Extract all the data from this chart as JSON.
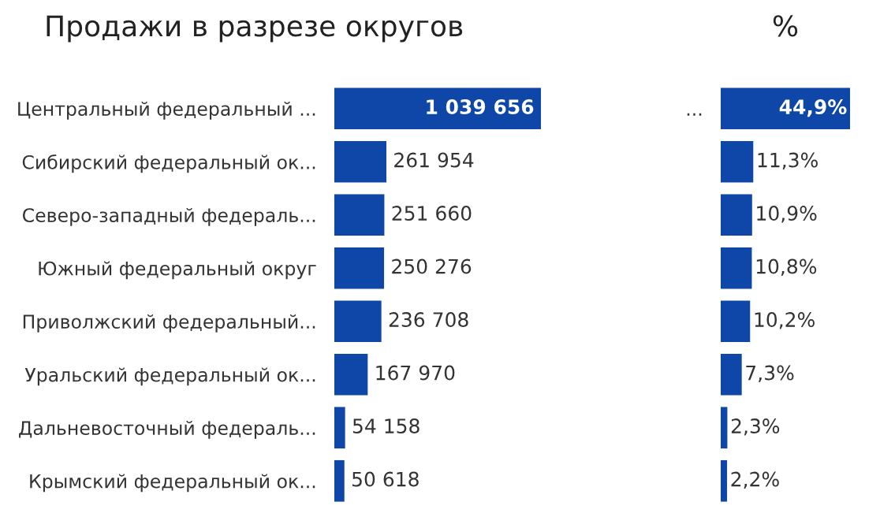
{
  "chart_data": [
    {
      "type": "bar",
      "orientation": "horizontal",
      "title": "Продажи в разрезе округов",
      "categories": [
        "Центральный федеральный ...",
        "Сибирский федеральный ок...",
        "Северо-западный федераль...",
        "Южный федеральный округ",
        "Приволжский федеральный...",
        "Уральский федеральный ок...",
        "Дальневосточный федераль...",
        "Крымский федеральный ок..."
      ],
      "values": [
        1039656,
        261954,
        251660,
        250276,
        236708,
        167970,
        54158,
        50618
      ],
      "value_labels": [
        "1 039 656",
        "261 954",
        "251 660",
        "250 276",
        "236 708",
        "167 970",
        "54 158",
        "50 618"
      ],
      "color": "#0f47a8"
    },
    {
      "type": "bar",
      "orientation": "horizontal",
      "title": "%",
      "categories": [
        "...",
        null,
        null,
        null,
        null,
        null,
        null,
        null
      ],
      "values": [
        44.9,
        11.3,
        10.9,
        10.8,
        10.2,
        7.3,
        2.3,
        2.2
      ],
      "value_labels": [
        "44,9%",
        "11,3%",
        "10,9%",
        "10,8%",
        "10,2%",
        "7,3%",
        "2,3%",
        "2,2%"
      ],
      "color": "#0f47a8"
    }
  ]
}
